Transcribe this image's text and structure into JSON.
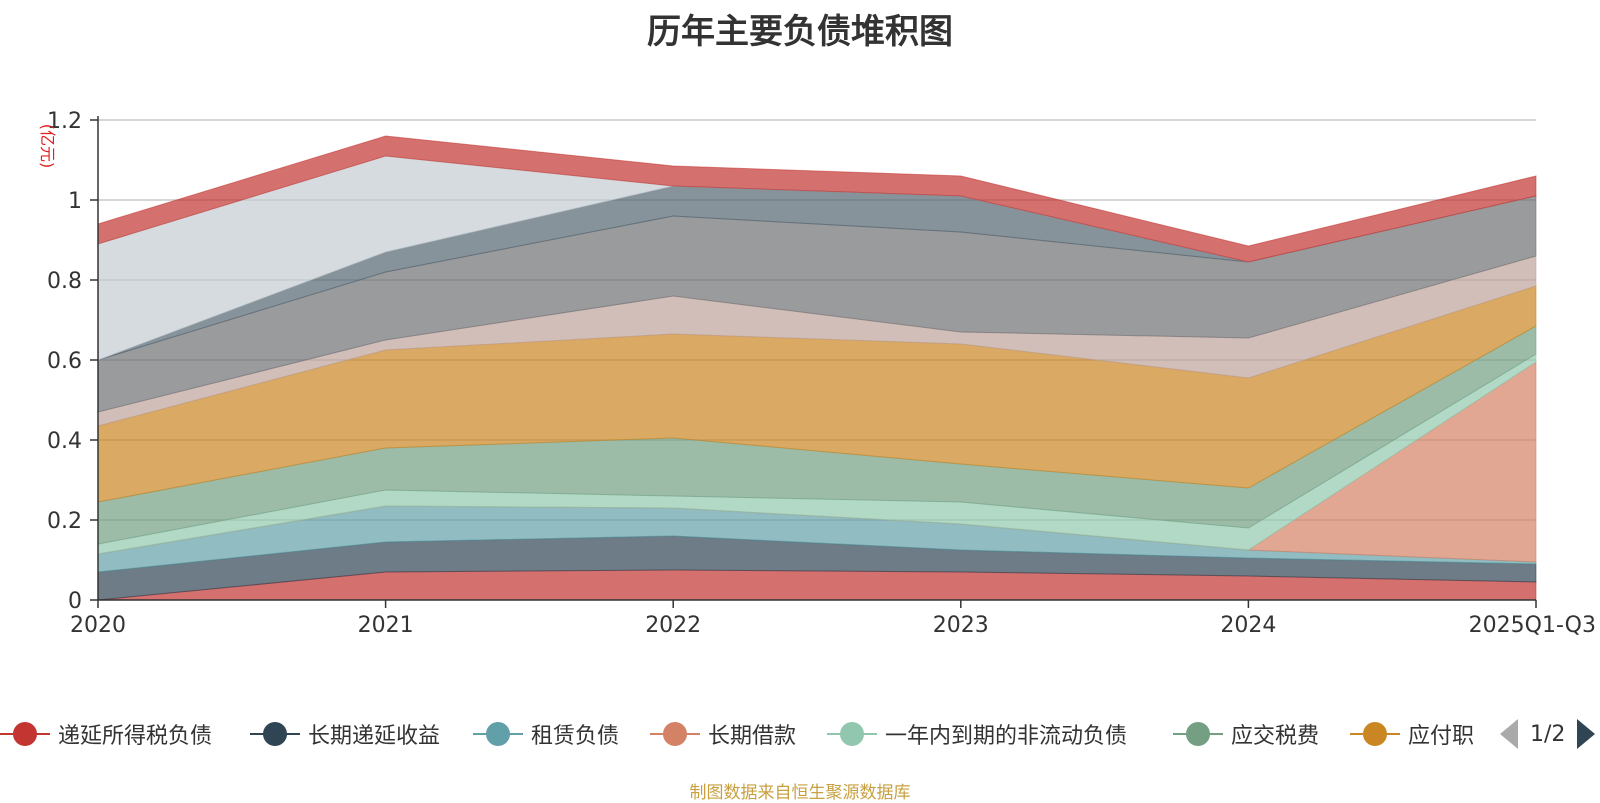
{
  "chart_data": {
    "type": "area",
    "stacked": true,
    "title": "历年主要负债堆积图",
    "unit": "(亿元)",
    "categories": [
      "2020",
      "2021",
      "2022",
      "2023",
      "2024",
      "2025Q1-Q3"
    ],
    "y_ticks": [
      "0",
      "0.2",
      "0.4",
      "0.6",
      "0.8",
      "1",
      "1.2"
    ],
    "ylim": [
      0,
      1.2
    ],
    "grid": true,
    "series": [
      {
        "name": "递延所得税负债",
        "values": [
          0.0,
          0.07,
          0.075,
          0.07,
          0.06,
          0.045
        ],
        "color": "#c23531",
        "in_legend": true
      },
      {
        "name": "长期递延收益",
        "values": [
          0.07,
          0.075,
          0.085,
          0.055,
          0.045,
          0.045
        ],
        "color": "#2f4554",
        "in_legend": true
      },
      {
        "name": "租赁负债",
        "values": [
          0.045,
          0.09,
          0.07,
          0.065,
          0.02,
          0.005
        ],
        "color": "#61a0a8",
        "in_legend": true
      },
      {
        "name": "长期借款",
        "values": [
          0.0,
          0.0,
          0.0,
          0.0,
          0.0,
          0.5
        ],
        "color": "#d48265",
        "in_legend": true
      },
      {
        "name": "一年内到期的非流动负债",
        "values": [
          0.025,
          0.04,
          0.03,
          0.055,
          0.055,
          0.02
        ],
        "color": "#91c7ae",
        "in_legend": true
      },
      {
        "name": "应交税费",
        "values": [
          0.105,
          0.105,
          0.145,
          0.095,
          0.1,
          0.07
        ],
        "color": "#749f83",
        "in_legend": true
      },
      {
        "name": "应付职",
        "values": [
          0.19,
          0.245,
          0.26,
          0.3,
          0.275,
          0.1
        ],
        "color": "#ca8622",
        "in_legend": true
      },
      {
        "name": "",
        "values": [
          0.035,
          0.025,
          0.095,
          0.03,
          0.1,
          0.075
        ],
        "color": "#bda29a",
        "in_legend": false
      },
      {
        "name": "",
        "values": [
          0.13,
          0.17,
          0.2,
          0.25,
          0.19,
          0.15
        ],
        "color": "#6e7074",
        "in_legend": false
      },
      {
        "name": "",
        "values": [
          0.0,
          0.05,
          0.075,
          0.09,
          0.0,
          0.0
        ],
        "color": "#546570",
        "in_legend": false
      },
      {
        "name": "",
        "values": [
          0.29,
          0.24,
          0.0,
          0.0,
          0.0,
          0.0
        ],
        "color": "#c4ccd3",
        "in_legend": false
      },
      {
        "name": "",
        "values": [
          0.05,
          0.05,
          0.05,
          0.05,
          0.04,
          0.05
        ],
        "color": "#c23531",
        "in_legend": false
      }
    ]
  },
  "legend": {
    "pager_text": "1/2"
  },
  "footnote": "制图数据来自恒生聚源数据库"
}
